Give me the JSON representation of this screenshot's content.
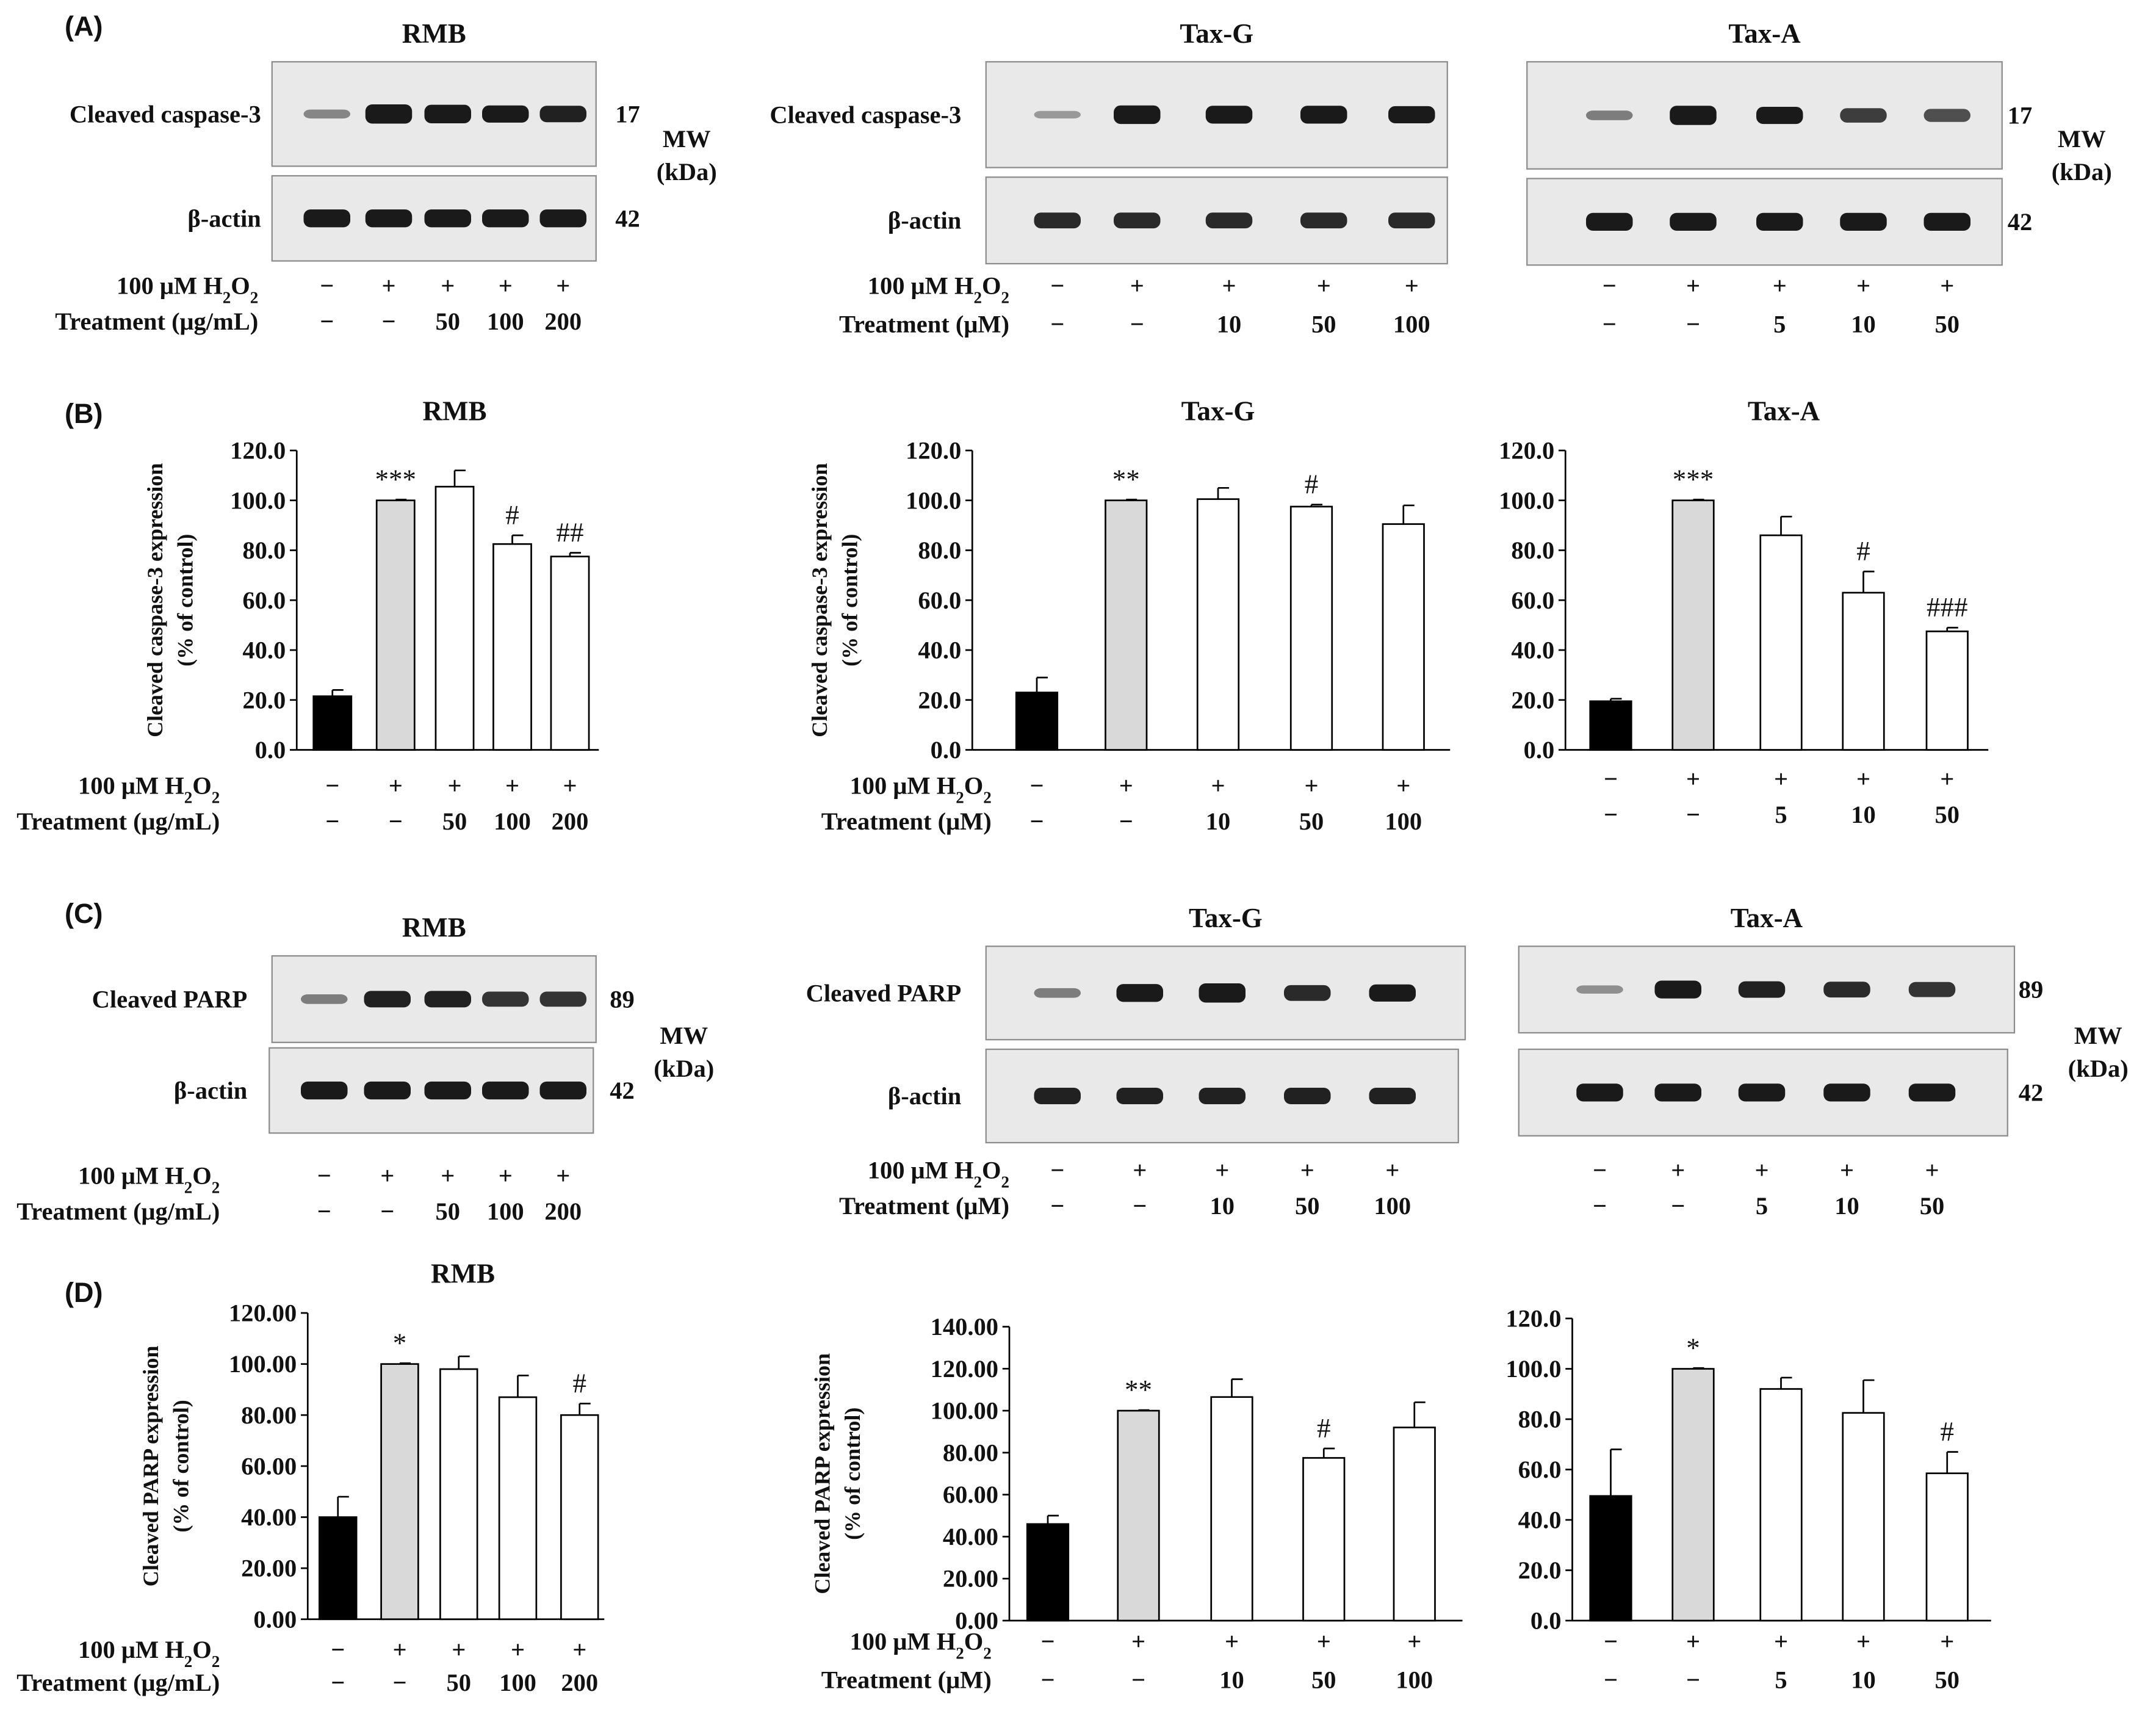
{
  "figure": {
    "panel_labels": [
      "(A)",
      "(B)",
      "(C)",
      "(D)"
    ],
    "condition_labels": {
      "h2o2_prefix": "100 μM H",
      "h2o2_sub": "2",
      "h2o2_suffix": "O",
      "h2o2_sub2": "2",
      "treatment_rmb": "Treatment (μg/mL)",
      "treatment_tax": "Treatment (μM)"
    },
    "conditions": {
      "RMB": {
        "h2o2": [
          "−",
          "+",
          "+",
          "+",
          "+"
        ],
        "dose": [
          "−",
          "−",
          "50",
          "100",
          "200"
        ]
      },
      "Tax-G": {
        "h2o2": [
          "−",
          "+",
          "+",
          "+",
          "+"
        ],
        "dose": [
          "−",
          "−",
          "10",
          "50",
          "100"
        ]
      },
      "Tax-A": {
        "h2o2": [
          "−",
          "+",
          "+",
          "+",
          "+"
        ],
        "dose": [
          "−",
          "−",
          "5",
          "10",
          "50"
        ]
      }
    },
    "blots": {
      "A": [
        {
          "title": "RMB",
          "row1": "Cleaved caspase-3",
          "row2": "β-actin",
          "mw1": "17",
          "mw2": "42",
          "mw_label": "MW",
          "mw_unit": "(kDa)"
        },
        {
          "title": "Tax-G",
          "row1": "Cleaved caspase-3",
          "row2": "β-actin",
          "mw1": "",
          "mw2": ""
        },
        {
          "title": "Tax-A",
          "row1": "",
          "row2": "",
          "mw1": "17",
          "mw2": "42",
          "mw_label": "MW",
          "mw_unit": "(kDa)"
        }
      ],
      "C": [
        {
          "title": "RMB",
          "row1": "Cleaved PARP",
          "row2": "β-actin",
          "mw1": "89",
          "mw2": "42",
          "mw_label": "MW",
          "mw_unit": "(kDa)"
        },
        {
          "title": "Tax-G",
          "row1": "Cleaved PARP",
          "row2": "β-actin",
          "mw1": "",
          "mw2": ""
        },
        {
          "title": "Tax-A",
          "row1": "",
          "row2": "",
          "mw1": "89",
          "mw2": "42",
          "mw_label": "MW",
          "mw_unit": "(kDa)"
        }
      ]
    },
    "colors": {
      "control": "#000000",
      "h2o2": "#d9d9d9",
      "treated": "#ffffff",
      "band": "#1a1a1a",
      "blot_bg": "#e9e9e9"
    }
  },
  "chart_data": [
    {
      "panel": "B",
      "type": "bar",
      "title": "RMB",
      "ylabel_line1": "Cleaved caspase-3 expression",
      "ylabel_line2": "(% of control)",
      "ylim": [
        0,
        120
      ],
      "yticks": [
        "0.0",
        "20.0",
        "40.0",
        "60.0",
        "80.0",
        "100.0",
        "120.0"
      ],
      "values": [
        21.5,
        100.0,
        105.5,
        82.5,
        77.5
      ],
      "errors": [
        2.5,
        0.3,
        6.5,
        3.5,
        1.5
      ],
      "significance": [
        "",
        "***",
        "",
        "#",
        "##"
      ],
      "group": "RMB"
    },
    {
      "panel": "B",
      "type": "bar",
      "title": "Tax-G",
      "ylabel_line1": "Cleaved caspase-3 expression",
      "ylabel_line2": "(% of control)",
      "ylim": [
        0,
        120
      ],
      "yticks": [
        "0.0",
        "20.0",
        "40.0",
        "60.0",
        "80.0",
        "100.0",
        "120.0"
      ],
      "values": [
        23.0,
        100.0,
        100.5,
        97.5,
        90.5
      ],
      "errors": [
        6.0,
        0.3,
        4.5,
        0.8,
        7.5
      ],
      "significance": [
        "",
        "**",
        "",
        "#",
        ""
      ],
      "group": "Tax-G"
    },
    {
      "panel": "B",
      "type": "bar",
      "title": "Tax-A",
      "ylabel_line1": "",
      "ylabel_line2": "",
      "ylim": [
        0,
        120
      ],
      "yticks": [
        "0.0",
        "20.0",
        "40.0",
        "60.0",
        "80.0",
        "100.0",
        "120.0"
      ],
      "values": [
        19.5,
        100.0,
        86.0,
        63.0,
        47.5
      ],
      "errors": [
        1.0,
        0.3,
        7.5,
        8.5,
        1.5
      ],
      "significance": [
        "",
        "***",
        "",
        "#",
        "###"
      ],
      "group": "Tax-A"
    },
    {
      "panel": "D",
      "type": "bar",
      "title": "RMB",
      "ylabel_line1": "Cleaved PARP expression",
      "ylabel_line2": "(% of control)",
      "ylim": [
        0,
        120
      ],
      "yticks": [
        "0.00",
        "20.00",
        "40.00",
        "60.00",
        "80.00",
        "100.00",
        "120.00"
      ],
      "values": [
        40.0,
        100.0,
        98.0,
        87.0,
        80.0
      ],
      "errors": [
        8.0,
        0.3,
        5.0,
        8.5,
        4.5
      ],
      "significance": [
        "",
        "*",
        "",
        "",
        "#"
      ],
      "group": "RMB"
    },
    {
      "panel": "D",
      "type": "bar",
      "title": "",
      "ylabel_line1": "Cleaved PARP expression",
      "ylabel_line2": "(% of control)",
      "ylim": [
        0,
        140
      ],
      "yticks": [
        "0.00",
        "20.00",
        "40.00",
        "60.00",
        "80.00",
        "100.00",
        "120.00",
        "140.00"
      ],
      "values": [
        46.0,
        100.0,
        106.5,
        77.5,
        92.0
      ],
      "errors": [
        4.0,
        0.3,
        8.5,
        4.5,
        12.0
      ],
      "significance": [
        "",
        "**",
        "",
        "#",
        ""
      ],
      "group": "Tax-G"
    },
    {
      "panel": "D",
      "type": "bar",
      "title": "",
      "ylabel_line1": "",
      "ylabel_line2": "",
      "ylim": [
        0,
        120
      ],
      "yticks": [
        "0.0",
        "20.0",
        "40.0",
        "60.0",
        "80.0",
        "100.0",
        "120.0"
      ],
      "values": [
        49.5,
        100.0,
        92.0,
        82.5,
        58.5
      ],
      "errors": [
        18.5,
        0.3,
        4.5,
        13.0,
        8.5
      ],
      "significance": [
        "",
        "*",
        "",
        "",
        "#"
      ],
      "group": "Tax-A"
    }
  ]
}
